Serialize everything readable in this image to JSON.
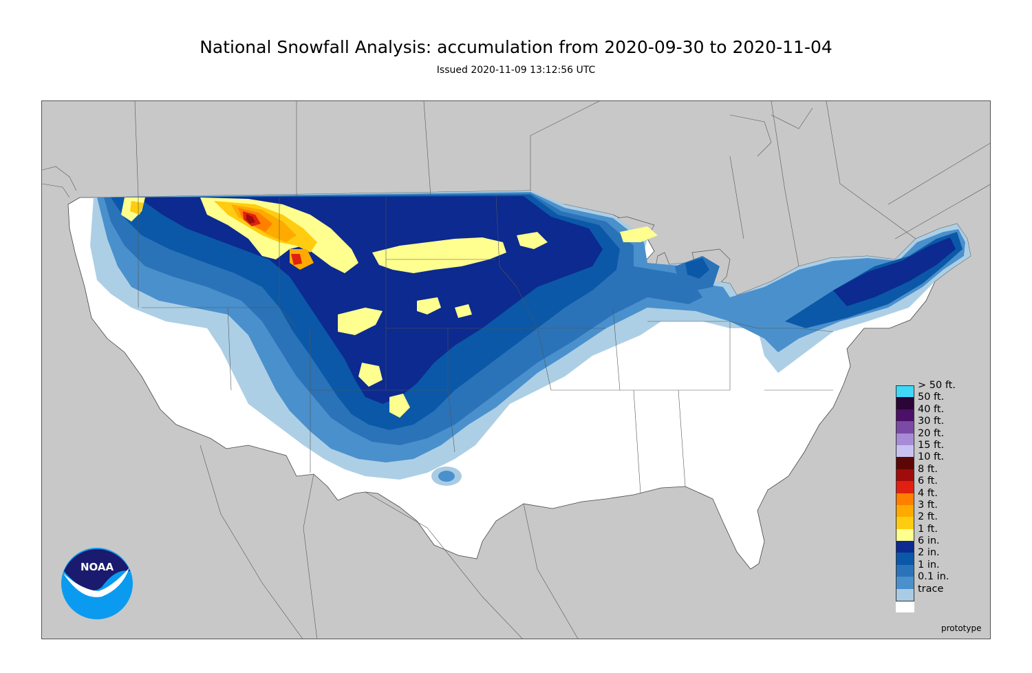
{
  "title": "National Snowfall Analysis: accumulation from 2020-09-30 to 2020-11-04",
  "subtitle": "Issued 2020-11-09 13:12:56 UTC",
  "logo_text": "NOAA",
  "prototype_label": "prototype",
  "colors": {
    "land_outside": "#c8c8c8",
    "water": "#c8c8c8",
    "conus_background": "#ffffff",
    "border_lines": "#555555"
  },
  "legend": {
    "items": [
      {
        "label": "> 50 ft.",
        "color": "#3fd8f8"
      },
      {
        "label": "50 ft.",
        "color": "#2a0535"
      },
      {
        "label": "40 ft.",
        "color": "#4b1068"
      },
      {
        "label": "30 ft.",
        "color": "#7a4aa5"
      },
      {
        "label": "20 ft.",
        "color": "#a88bd6"
      },
      {
        "label": "15 ft.",
        "color": "#c8c2f2"
      },
      {
        "label": "10 ft.",
        "color": "#5c0606"
      },
      {
        "label": "8 ft.",
        "color": "#a00c0c"
      },
      {
        "label": "6 ft.",
        "color": "#e02010"
      },
      {
        "label": "4 ft.",
        "color": "#ff8000"
      },
      {
        "label": "3 ft.",
        "color": "#ffaa00"
      },
      {
        "label": "2 ft.",
        "color": "#ffcc11"
      },
      {
        "label": "1 ft.",
        "color": "#ffff8f"
      },
      {
        "label": "6 in.",
        "color": "#0c2a8f"
      },
      {
        "label": "2 in.",
        "color": "#0b58a8"
      },
      {
        "label": "1 in.",
        "color": "#2a73b8"
      },
      {
        "label": "0.1 in.",
        "color": "#4a90cc"
      },
      {
        "label": "trace",
        "color": "#a9cce4"
      },
      {
        "label": "",
        "color": "#ffffff"
      }
    ]
  }
}
